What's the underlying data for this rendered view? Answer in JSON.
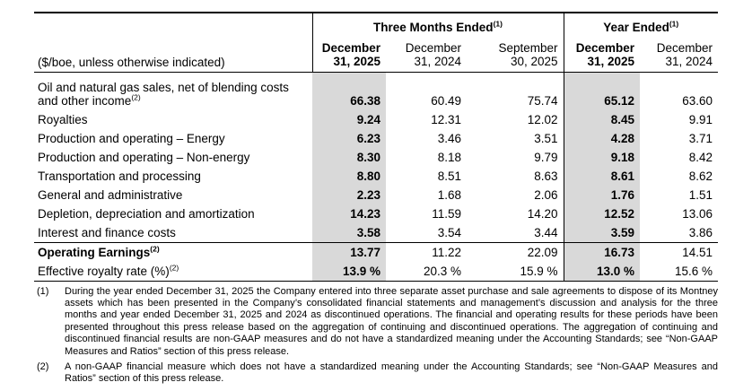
{
  "header": {
    "unit_label": "($/boe, unless otherwise indicated)",
    "groups": [
      {
        "label": "Three Months Ended",
        "sup": "(1)"
      },
      {
        "label": "Year Ended",
        "sup": "(1)"
      }
    ],
    "columns": [
      "December\n31, 2025",
      "December\n31, 2024",
      "September\n30, 2025",
      "December\n31, 2025",
      "December\n31, 2024"
    ]
  },
  "table": {
    "rows": [
      {
        "label": "Oil and natural gas sales, net of blending costs and other income",
        "sup": "(2)",
        "values": [
          "66.38",
          "60.49",
          "75.74",
          "65.12",
          "63.60"
        ]
      },
      {
        "label": "Royalties",
        "values": [
          "9.24",
          "12.31",
          "12.02",
          "8.45",
          "9.91"
        ]
      },
      {
        "label": "Production and operating – Energy",
        "values": [
          "6.23",
          "3.46",
          "3.51",
          "4.28",
          "3.71"
        ]
      },
      {
        "label": "Production and operating – Non-energy",
        "values": [
          "8.30",
          "8.18",
          "9.79",
          "9.18",
          "8.42"
        ]
      },
      {
        "label": "Transportation and processing",
        "values": [
          "8.80",
          "8.51",
          "8.63",
          "8.61",
          "8.62"
        ]
      },
      {
        "label": "General and administrative",
        "values": [
          "2.23",
          "1.68",
          "2.06",
          "1.76",
          "1.51"
        ]
      },
      {
        "label": "Depletion, depreciation and amortization",
        "values": [
          "14.23",
          "11.59",
          "14.20",
          "12.52",
          "13.06"
        ]
      },
      {
        "label": "Interest and finance costs",
        "values": [
          "3.58",
          "3.54",
          "3.44",
          "3.59",
          "3.86"
        ]
      },
      {
        "label": "Operating Earnings",
        "sup": "(2)",
        "values": [
          "13.77",
          "11.22",
          "22.09",
          "16.73",
          "14.51"
        ]
      },
      {
        "label": "Effective royalty rate (%)",
        "sup": "(2)",
        "values": [
          "13.9 %",
          "20.3 %",
          "15.9 %",
          "13.0 %",
          "15.6 %"
        ]
      }
    ]
  },
  "footnotes": [
    {
      "marker": "(1)",
      "text": "During the year ended December 31, 2025 the Company entered into three separate asset purchase and sale agreements to dispose of its Montney assets which has been presented in the Company’s consolidated financial statements and management’s discussion and analysis for the three months and year ended December 31, 2025 and 2024 as discontinued operations. The financial and operating results for these periods have been presented throughout this press release based on the aggregation of continuing and discontinued operations. The aggregation of continuing and discontinued financial results are non-GAAP measures and do not have a standardized meaning under the Accounting Standards; see “Non-GAAP Measures and Ratios” section of this press release."
    },
    {
      "marker": "(2)",
      "text": "A non-GAAP financial measure which does not have a standardized meaning under the Accounting Standards; see “Non-GAAP Measures and Ratios” section of this press release."
    }
  ],
  "colors": {
    "shaded_column": "#d9d9d9",
    "rule": "#000000"
  }
}
